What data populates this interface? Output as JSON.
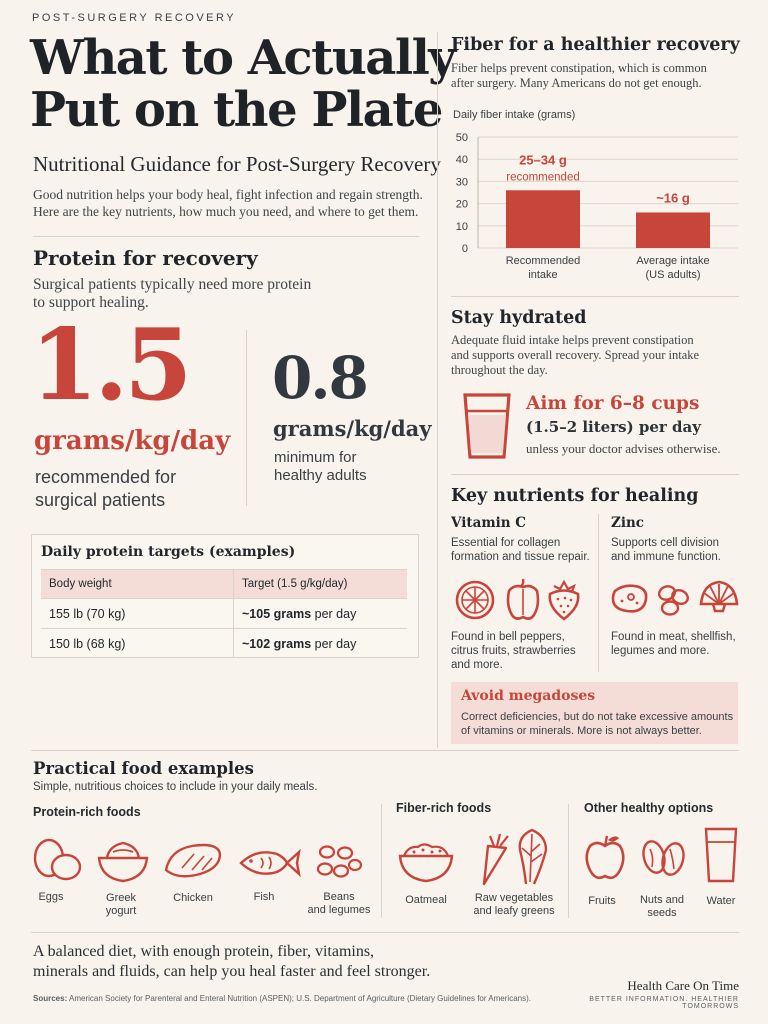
{
  "header": {
    "kicker": "POST-SURGERY RECOVERY",
    "title_line1": "What to Actually",
    "title_line2": "Put on the Plate",
    "subtitle": "Nutritional Guidance for Post-Surgery Recovery",
    "intro_line1": "Good nutrition helps your body heal, fight infection and regain strength.",
    "intro_line2": "Here are the key nutrients, how much you need, and where to get them."
  },
  "protein": {
    "heading": "Protein for recovery",
    "desc_line1": "Surgical patients typically need more protein",
    "desc_line2": "to support healing.",
    "big_value": "1.5",
    "big_unit": "grams/kg/day",
    "big_caption_line1": "recommended for",
    "big_caption_line2": "surgical patients",
    "small_value": "0.8",
    "small_unit": "grams/kg/day",
    "small_caption_line1": "minimum for",
    "small_caption_line2": "healthy adults",
    "table_title": "Daily protein targets (examples)",
    "columns": [
      "Body weight",
      "Target (1.5 g/kg/day)"
    ],
    "rows": [
      {
        "weight": "155 lb (70 kg)",
        "target_bold": "~105 grams",
        "target_rest": " per day"
      },
      {
        "weight": "150 lb (68 kg)",
        "target_bold": "~102 grams",
        "target_rest": " per day"
      }
    ]
  },
  "fiber": {
    "heading": "Fiber for a healthier recovery",
    "desc_line1": "Fiber helps prevent constipation, which is common",
    "desc_line2": "after surgery. Many Americans do not get enough.",
    "chart_data": {
      "type": "bar",
      "title": "Daily fiber intake (grams)",
      "categories": [
        "Recommended intake",
        "Average intake (US adults)"
      ],
      "category_lines": [
        [
          "Recommended",
          "intake"
        ],
        [
          "Average intake",
          "(US adults)"
        ]
      ],
      "values": [
        26,
        16
      ],
      "data_labels": [
        [
          "25–34 g",
          "recommended"
        ],
        [
          "~16 g"
        ]
      ],
      "yticks": [
        "0",
        "10",
        "20",
        "30",
        "40",
        "50"
      ],
      "ylim": [
        0,
        50
      ],
      "bar_color": "#c8453b"
    }
  },
  "hydration": {
    "heading": "Stay hydrated",
    "desc_line1": "Adequate fluid intake helps prevent constipation",
    "desc_line2": "and supports overall recovery. Spread your intake",
    "desc_line3": "throughout the day.",
    "aim": "Aim for 6–8 cups",
    "liters": "(1.5–2 liters) per day",
    "note": "unless your doctor advises otherwise.",
    "icon": "water-glass-icon"
  },
  "nutrients": {
    "heading": "Key nutrients for healing",
    "vitc_title": "Vitamin C",
    "vitc_desc_line1": "Essential for collagen",
    "vitc_desc_line2": "formation and tissue repair.",
    "vitc_found_line1": "Found in bell peppers,",
    "vitc_found_line2": "citrus fruits, strawberries",
    "vitc_found_line3": "and more.",
    "zinc_title": "Zinc",
    "zinc_desc_line1": "Supports cell division",
    "zinc_desc_line2": "and immune function.",
    "zinc_found_line1": "Found in meat, shellfish,",
    "zinc_found_line2": "legumes and more.",
    "avoid_title": "Avoid megadoses",
    "avoid_line1": "Correct deficiencies, but do not take excessive amounts",
    "avoid_line2": "of vitamins or minerals. More is not always better."
  },
  "foods": {
    "heading": "Practical food examples",
    "sub": "Simple, nutritious choices to include in your daily meals.",
    "protein_head": "Protein-rich foods",
    "fiber_head": "Fiber-rich foods",
    "other_head": "Other healthy options",
    "eggs": "Eggs",
    "yogurt_line1": "Greek",
    "yogurt_line2": "yogurt",
    "chicken": "Chicken",
    "fish": "Fish",
    "beans_line1": "Beans",
    "beans_line2": "and legumes",
    "oatmeal": "Oatmeal",
    "veg_line1": "Raw vegetables",
    "veg_line2": "and leafy greens",
    "fruits": "Fruits",
    "nuts_line1": "Nuts and",
    "nuts_line2": "seeds",
    "water": "Water"
  },
  "footer": {
    "closing_line1": "A balanced diet, with enough protein, fiber, vitamins,",
    "closing_line2": "minerals and fluids, can help you heal faster and feel stronger.",
    "sources_label": "Sources:",
    "sources_text": " American Society for Parenteral and Enteral Nutrition (ASPEN); U.S. Department of Agriculture (Dietary Guidelines for Americans).",
    "brand": "Health Care On Time",
    "tagline": "BETTER INFORMATION. HEALTHIER TOMORROWS"
  },
  "colors": {
    "accent": "#c8453b",
    "text": "#22272d",
    "background": "#f8f3ec",
    "panel": "#f4ddd6"
  }
}
